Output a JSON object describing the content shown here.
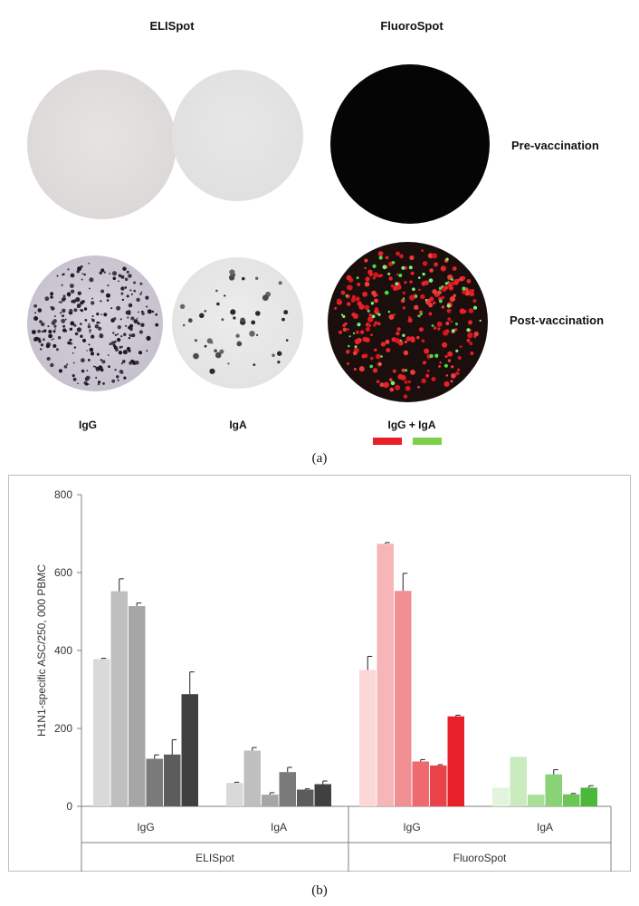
{
  "panel_a": {
    "header_elispot": "ELISpot",
    "header_fluorospot": "FluoroSpot",
    "row_pre": "Pre-vaccination",
    "row_post": "Post-vaccination",
    "col_igg": "IgG",
    "col_iga": "IgA",
    "col_igg_iga": "IgG + IgA",
    "legend_colors": {
      "igg": "#e8202a",
      "iga": "#7ed04a"
    },
    "label": "(a)"
  },
  "panel_b_label": "(b)",
  "chart_data": {
    "type": "bar",
    "ylabel": "H1N1-specific ASC/250, 000 PBMC",
    "ylim": [
      0,
      800
    ],
    "yticks": [
      0,
      200,
      400,
      600,
      800
    ],
    "x_groups": [
      {
        "label": "ELISpot",
        "subgroups": [
          "IgG",
          "IgA"
        ]
      },
      {
        "label": "FluoroSpot",
        "subgroups": [
          "IgG",
          "IgA"
        ]
      }
    ],
    "series_groups": [
      {
        "assay": "ELISpot",
        "isotype": "IgG",
        "values": [
          378,
          552,
          514,
          122,
          133,
          288
        ],
        "errors": [
          2,
          32,
          8,
          10,
          38,
          57
        ],
        "colors": [
          "#d9d9d9",
          "#bfbfbf",
          "#a6a6a6",
          "#7a7a7a",
          "#5c5c5c",
          "#404040"
        ]
      },
      {
        "assay": "ELISpot",
        "isotype": "IgA",
        "values": [
          60,
          143,
          30,
          88,
          43,
          57
        ],
        "errors": [
          2,
          8,
          5,
          12,
          2,
          8
        ],
        "colors": [
          "#d9d9d9",
          "#bfbfbf",
          "#a6a6a6",
          "#7a7a7a",
          "#5c5c5c",
          "#404040"
        ]
      },
      {
        "assay": "FluoroSpot",
        "isotype": "IgG",
        "values": [
          350,
          674,
          553,
          115,
          105,
          231
        ],
        "errors": [
          35,
          3,
          45,
          5,
          2,
          3
        ],
        "colors": [
          "#fbd7d8",
          "#f6b6b8",
          "#f28f93",
          "#ee6a6f",
          "#ea4249",
          "#e8202a"
        ]
      },
      {
        "assay": "FluoroSpot",
        "isotype": "IgA",
        "values": [
          48,
          127,
          30,
          82,
          31,
          48
        ],
        "errors": [
          0,
          0,
          0,
          12,
          2,
          5
        ],
        "colors": [
          "#e3f4dc",
          "#c9ebbd",
          "#a9df98",
          "#8ad276",
          "#6cc657",
          "#4cb83b"
        ]
      }
    ]
  }
}
